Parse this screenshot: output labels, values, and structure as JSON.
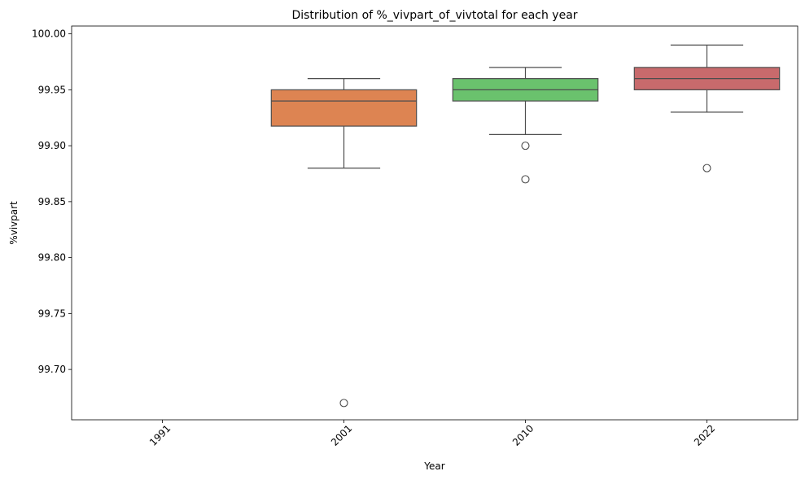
{
  "chart_data": {
    "type": "box",
    "title": "Distribution of %_vivpart_of_vivtotal for each year",
    "xlabel": "Year",
    "ylabel": "%vivpart",
    "ylim": [
      99.655,
      100.007
    ],
    "yticks": [
      "99.70",
      "99.75",
      "99.80",
      "99.85",
      "99.90",
      "99.95",
      "100.00"
    ],
    "categories": [
      "1991",
      "2001",
      "2010",
      "2022"
    ],
    "boxes": [
      {
        "category": "1991",
        "empty": true
      },
      {
        "category": "2001",
        "color": "#dd8452",
        "whisker_low": 99.88,
        "q1": 99.9175,
        "median": 99.94,
        "q3": 99.95,
        "whisker_high": 99.96,
        "outliers": [
          99.67
        ]
      },
      {
        "category": "2010",
        "color": "#6ac26d",
        "whisker_low": 99.91,
        "q1": 99.94,
        "median": 99.95,
        "q3": 99.96,
        "whisker_high": 99.97,
        "outliers": [
          99.9,
          99.87
        ]
      },
      {
        "category": "2022",
        "color": "#c86a6c",
        "whisker_low": 99.93,
        "q1": 99.95,
        "median": 99.96,
        "q3": 99.97,
        "whisker_high": 99.99,
        "outliers": [
          99.88
        ]
      }
    ],
    "grid": false,
    "legend": "none"
  }
}
